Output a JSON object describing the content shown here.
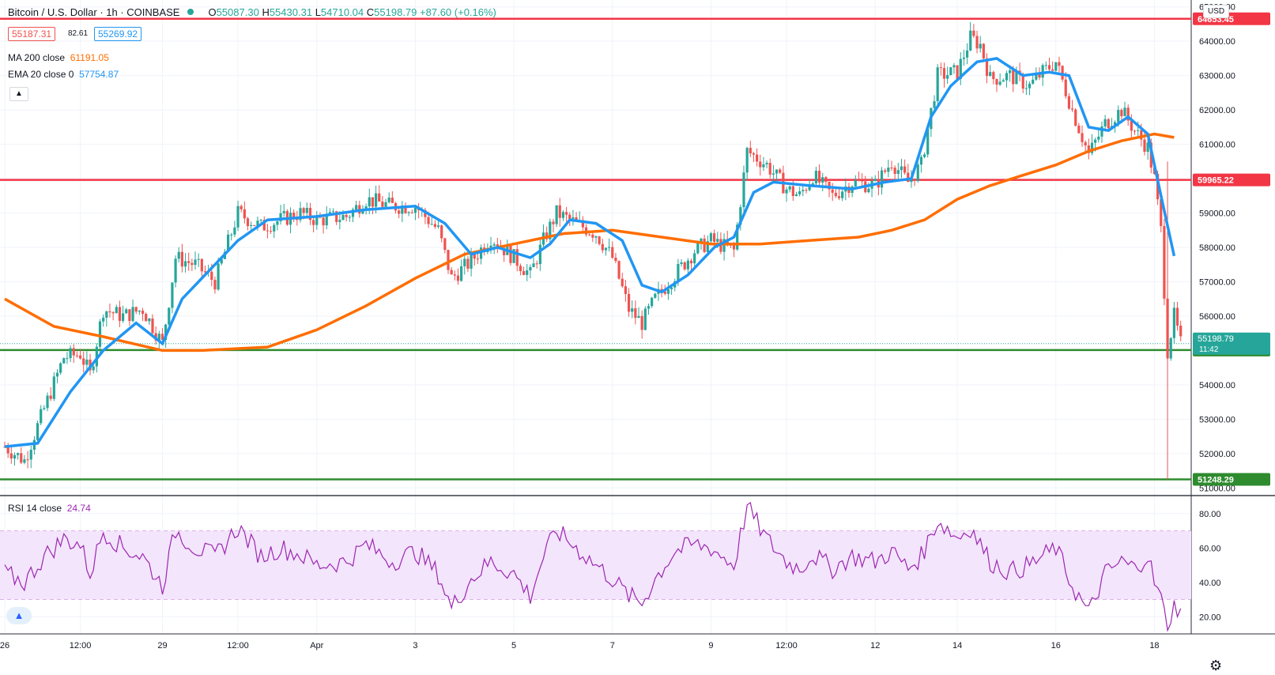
{
  "header": {
    "symbol": "Bitcoin / U.S. Dollar · 1h · COINBASE",
    "open_label": "O",
    "open": "55087.30",
    "high_label": "H",
    "high": "55430.31",
    "low_label": "L",
    "low": "54710.04",
    "close_label": "C",
    "close": "55198.79",
    "change": "+87.60 (+0.16%)"
  },
  "bid_ask": {
    "sell": "55187.31",
    "spread": "82.61",
    "buy": "55269.92"
  },
  "indicators": {
    "ma_label": "MA 200 close",
    "ma_value": "61191.05",
    "ema_label": "EMA 20 close 0",
    "ema_value": "57754.87",
    "rsi_label": "RSI 14 close",
    "rsi_value": "24.74"
  },
  "currency_button": "USD",
  "collapse_icon": "chevron-up-icon",
  "settings_icon": "gear-icon",
  "logo_icon": "tradingview-logo-icon",
  "colors": {
    "up": "#26a69a",
    "down": "#ef5350",
    "ema": "#2196f3",
    "ma": "#ff6d00",
    "resistance": "#f23645",
    "support": "#2e8b2e",
    "rsi": "#9c27b0",
    "rsi_band": "#f3e5fc"
  },
  "chart_data": {
    "type": "candlestick",
    "price_axis": {
      "ylim": [
        50800,
        65200
      ],
      "ticks": [
        51000,
        52000,
        53000,
        54000,
        55000,
        56000,
        57000,
        58000,
        59000,
        60000,
        61000,
        62000,
        63000,
        64000,
        65000
      ]
    },
    "x_tick_labels": [
      "26",
      "12:00",
      "29",
      "12:00",
      "Apr",
      "3",
      "5",
      "7",
      "9",
      "12:00",
      "12",
      "14",
      "16",
      "18"
    ],
    "x_tick_index": [
      0,
      23,
      48,
      71,
      95,
      125,
      155,
      185,
      215,
      238,
      265,
      290,
      320,
      350
    ],
    "bar_count": 360,
    "horizontal_levels": [
      {
        "value": 64653.45,
        "label": "64653.45",
        "role": "resistance"
      },
      {
        "value": 59965.22,
        "label": "59965.22",
        "role": "resistance"
      },
      {
        "value": 55011.43,
        "label": "55011.43",
        "role": "support"
      },
      {
        "value": 51248.29,
        "label": "51248.29",
        "role": "support"
      }
    ],
    "last_price": {
      "value": 55198.79,
      "label": "55198.79",
      "countdown": "11:42"
    },
    "close_path": [
      [
        0,
        52200
      ],
      [
        6,
        51800
      ],
      [
        12,
        53300
      ],
      [
        18,
        54800
      ],
      [
        23,
        54900
      ],
      [
        26,
        54300
      ],
      [
        30,
        56200
      ],
      [
        36,
        56000
      ],
      [
        42,
        56200
      ],
      [
        48,
        55200
      ],
      [
        52,
        57700
      ],
      [
        58,
        57500
      ],
      [
        64,
        57000
      ],
      [
        71,
        59000
      ],
      [
        78,
        58600
      ],
      [
        84,
        58800
      ],
      [
        90,
        59000
      ],
      [
        95,
        58800
      ],
      [
        104,
        58900
      ],
      [
        110,
        59400
      ],
      [
        118,
        59200
      ],
      [
        125,
        59200
      ],
      [
        132,
        58500
      ],
      [
        136,
        57100
      ],
      [
        142,
        57600
      ],
      [
        148,
        58300
      ],
      [
        155,
        57700
      ],
      [
        160,
        57200
      ],
      [
        164,
        58200
      ],
      [
        168,
        59000
      ],
      [
        174,
        58700
      ],
      [
        180,
        58400
      ],
      [
        185,
        57700
      ],
      [
        190,
        56200
      ],
      [
        194,
        55800
      ],
      [
        198,
        56500
      ],
      [
        204,
        57200
      ],
      [
        210,
        57900
      ],
      [
        215,
        58200
      ],
      [
        222,
        57900
      ],
      [
        226,
        60800
      ],
      [
        232,
        60400
      ],
      [
        238,
        59700
      ],
      [
        242,
        59500
      ],
      [
        246,
        60100
      ],
      [
        252,
        59500
      ],
      [
        258,
        59900
      ],
      [
        265,
        59800
      ],
      [
        270,
        60500
      ],
      [
        275,
        59900
      ],
      [
        279,
        60400
      ],
      [
        284,
        63000
      ],
      [
        290,
        63100
      ],
      [
        294,
        64100
      ],
      [
        297,
        63900
      ],
      [
        300,
        62900
      ],
      [
        306,
        63000
      ],
      [
        312,
        62700
      ],
      [
        316,
        63100
      ],
      [
        320,
        63400
      ],
      [
        325,
        62000
      ],
      [
        330,
        60700
      ],
      [
        335,
        61600
      ],
      [
        340,
        62000
      ],
      [
        344,
        61400
      ],
      [
        348,
        60900
      ],
      [
        350,
        60000
      ],
      [
        352,
        58500
      ],
      [
        354,
        55000
      ],
      [
        356,
        56000
      ],
      [
        358,
        55200
      ]
    ],
    "ema20_path": [
      [
        0,
        52200
      ],
      [
        10,
        52300
      ],
      [
        20,
        53800
      ],
      [
        30,
        55000
      ],
      [
        40,
        55800
      ],
      [
        48,
        55200
      ],
      [
        54,
        56500
      ],
      [
        62,
        57300
      ],
      [
        71,
        58200
      ],
      [
        80,
        58800
      ],
      [
        95,
        58900
      ],
      [
        110,
        59100
      ],
      [
        125,
        59200
      ],
      [
        134,
        58700
      ],
      [
        142,
        57800
      ],
      [
        150,
        58000
      ],
      [
        160,
        57700
      ],
      [
        166,
        58100
      ],
      [
        172,
        58800
      ],
      [
        180,
        58700
      ],
      [
        188,
        58200
      ],
      [
        194,
        56900
      ],
      [
        200,
        56700
      ],
      [
        208,
        57200
      ],
      [
        216,
        58000
      ],
      [
        222,
        58300
      ],
      [
        228,
        59600
      ],
      [
        234,
        59900
      ],
      [
        245,
        59800
      ],
      [
        258,
        59700
      ],
      [
        268,
        59900
      ],
      [
        276,
        60000
      ],
      [
        282,
        61800
      ],
      [
        288,
        62700
      ],
      [
        296,
        63400
      ],
      [
        302,
        63500
      ],
      [
        310,
        63000
      ],
      [
        318,
        63100
      ],
      [
        324,
        63000
      ],
      [
        330,
        61500
      ],
      [
        336,
        61400
      ],
      [
        342,
        61800
      ],
      [
        348,
        61300
      ],
      [
        352,
        59500
      ],
      [
        356,
        57750
      ]
    ],
    "ma200_path": [
      [
        0,
        56500
      ],
      [
        15,
        55700
      ],
      [
        30,
        55400
      ],
      [
        48,
        55000
      ],
      [
        60,
        55000
      ],
      [
        80,
        55100
      ],
      [
        95,
        55600
      ],
      [
        110,
        56300
      ],
      [
        125,
        57100
      ],
      [
        140,
        57800
      ],
      [
        155,
        58100
      ],
      [
        170,
        58400
      ],
      [
        185,
        58500
      ],
      [
        200,
        58300
      ],
      [
        215,
        58100
      ],
      [
        230,
        58100
      ],
      [
        245,
        58200
      ],
      [
        260,
        58300
      ],
      [
        270,
        58500
      ],
      [
        280,
        58800
      ],
      [
        290,
        59400
      ],
      [
        300,
        59800
      ],
      [
        310,
        60100
      ],
      [
        320,
        60400
      ],
      [
        330,
        60800
      ],
      [
        340,
        61100
      ],
      [
        350,
        61300
      ],
      [
        356,
        61200
      ]
    ],
    "rsi": {
      "levels": [
        30,
        70
      ],
      "ylim": [
        10,
        90
      ],
      "ticks": [
        20,
        40,
        60,
        80
      ],
      "last": 24.74,
      "path": [
        [
          0,
          45
        ],
        [
          6,
          40
        ],
        [
          12,
          55
        ],
        [
          18,
          65
        ],
        [
          23,
          62
        ],
        [
          26,
          45
        ],
        [
          30,
          70
        ],
        [
          36,
          60
        ],
        [
          42,
          55
        ],
        [
          48,
          38
        ],
        [
          52,
          70
        ],
        [
          58,
          60
        ],
        [
          64,
          55
        ],
        [
          71,
          72
        ],
        [
          78,
          55
        ],
        [
          84,
          60
        ],
        [
          90,
          56
        ],
        [
          95,
          50
        ],
        [
          104,
          52
        ],
        [
          110,
          62
        ],
        [
          118,
          52
        ],
        [
          125,
          58
        ],
        [
          132,
          45
        ],
        [
          136,
          25
        ],
        [
          142,
          42
        ],
        [
          148,
          52
        ],
        [
          155,
          45
        ],
        [
          160,
          32
        ],
        [
          164,
          55
        ],
        [
          168,
          70
        ],
        [
          174,
          60
        ],
        [
          180,
          50
        ],
        [
          185,
          42
        ],
        [
          190,
          32
        ],
        [
          194,
          28
        ],
        [
          198,
          42
        ],
        [
          204,
          58
        ],
        [
          210,
          62
        ],
        [
          215,
          60
        ],
        [
          222,
          50
        ],
        [
          226,
          84
        ],
        [
          232,
          65
        ],
        [
          238,
          52
        ],
        [
          242,
          48
        ],
        [
          246,
          56
        ],
        [
          252,
          48
        ],
        [
          258,
          55
        ],
        [
          265,
          52
        ],
        [
          270,
          58
        ],
        [
          275,
          48
        ],
        [
          279,
          55
        ],
        [
          284,
          76
        ],
        [
          290,
          66
        ],
        [
          294,
          72
        ],
        [
          297,
          62
        ],
        [
          300,
          52
        ],
        [
          306,
          46
        ],
        [
          312,
          50
        ],
        [
          316,
          55
        ],
        [
          320,
          60
        ],
        [
          325,
          38
        ],
        [
          330,
          22
        ],
        [
          335,
          45
        ],
        [
          340,
          52
        ],
        [
          344,
          48
        ],
        [
          348,
          56
        ],
        [
          350,
          40
        ],
        [
          352,
          30
        ],
        [
          354,
          14
        ],
        [
          356,
          26
        ],
        [
          358,
          24.7
        ]
      ]
    }
  }
}
